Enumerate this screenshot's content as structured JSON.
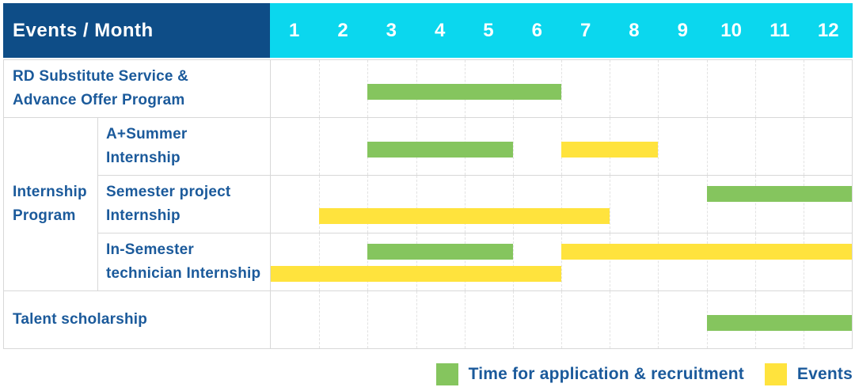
{
  "header": {
    "title": "Events / Month",
    "months": [
      "1",
      "2",
      "3",
      "4",
      "5",
      "6",
      "7",
      "8",
      "9",
      "10",
      "11",
      "12"
    ]
  },
  "colors": {
    "navy": "#0e4d87",
    "cyan": "#0bd7ee",
    "green": "#85c55e",
    "yellow": "#ffe33d",
    "label_text": "#1b5a9b"
  },
  "legend": [
    {
      "swatch": "green",
      "label": "Time for application & recruitment"
    },
    {
      "swatch": "yellow",
      "label": "Events"
    }
  ],
  "chart_data": {
    "type": "gantt",
    "x_unit": "month",
    "x_range": [
      1,
      12
    ],
    "bar_kinds": {
      "recruitment": {
        "color": "green",
        "legend": "Time for application & recruitment"
      },
      "event": {
        "color": "yellow",
        "legend": "Events"
      }
    },
    "sections": [
      {
        "group_label_lines": [],
        "rows": [
          {
            "label_lines": [
              "RD Substitute Service &",
              "Advance Offer Program"
            ],
            "tracks": 1,
            "bars": [
              {
                "kind": "recruitment",
                "start_month": 3,
                "end_month": 6,
                "track": 0
              }
            ]
          }
        ]
      },
      {
        "group_label_lines": [
          "Internship",
          "Program"
        ],
        "rows": [
          {
            "label_lines": [
              "A+Summer",
              "Internship"
            ],
            "tracks": 1,
            "bars": [
              {
                "kind": "recruitment",
                "start_month": 3,
                "end_month": 5,
                "track": 0
              },
              {
                "kind": "event",
                "start_month": 7,
                "end_month": 8,
                "track": 0
              }
            ]
          },
          {
            "label_lines": [
              "Semester project",
              "Internship"
            ],
            "tracks": 2,
            "bars": [
              {
                "kind": "recruitment",
                "start_month": 10,
                "end_month": 12,
                "track": 0
              },
              {
                "kind": "event",
                "start_month": 2,
                "end_month": 7,
                "track": 1
              }
            ]
          },
          {
            "label_lines": [
              "In-Semester",
              "technician Internship"
            ],
            "tracks": 2,
            "bars": [
              {
                "kind": "recruitment",
                "start_month": 3,
                "end_month": 5,
                "track": 0
              },
              {
                "kind": "event",
                "start_month": 7,
                "end_month": 12,
                "track": 0
              },
              {
                "kind": "event",
                "start_month": 1,
                "end_month": 6,
                "track": 1
              }
            ]
          }
        ]
      },
      {
        "group_label_lines": [],
        "rows": [
          {
            "label_lines": [
              "Talent scholarship"
            ],
            "tracks": 1,
            "bars": [
              {
                "kind": "recruitment",
                "start_month": 10,
                "end_month": 12,
                "track": 0
              }
            ]
          }
        ]
      }
    ]
  }
}
